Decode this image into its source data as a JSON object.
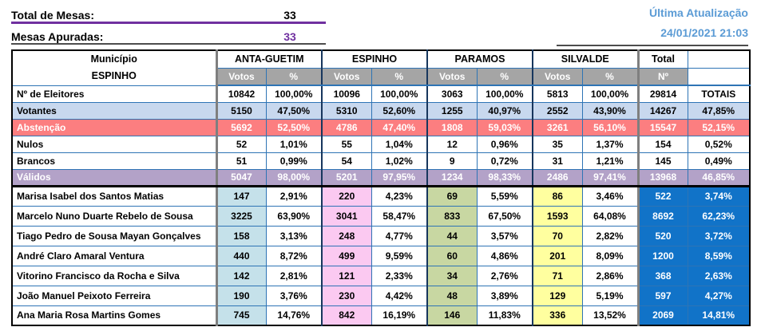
{
  "header": {
    "total_mesas_label": "Total de Mesas:",
    "total_mesas_value": "33",
    "mesas_apuradas_label": "Mesas Apuradas:",
    "mesas_apuradas_value": "33",
    "last_update_label": "Última Atualização",
    "last_update_value": "24/01/2021 21:03"
  },
  "table": {
    "municipio_label": "Município",
    "municipio_name": "ESPINHO",
    "groups": {
      "0": "ANTA-GUETIM",
      "1": "ESPINHO",
      "2": "PARAMOS",
      "3": "SILVALDE"
    },
    "votos_label": "Votos",
    "pct_label": "%",
    "total_label": "Total",
    "num_label": "Nº",
    "summary_rows": [
      {
        "label": "Nº de Eleitores",
        "style": "plain",
        "cells": [
          "10842",
          "100,00%",
          "10096",
          "100,00%",
          "3063",
          "100,00%",
          "5813",
          "100,00%"
        ],
        "total": "29814",
        "totais": "TOTAIS"
      },
      {
        "label": "Votantes",
        "style": "votantes",
        "cells": [
          "5150",
          "47,50%",
          "5310",
          "52,60%",
          "1255",
          "40,97%",
          "2552",
          "43,90%"
        ],
        "total": "14267",
        "totais": "47,85%"
      },
      {
        "label": "Abstenção",
        "style": "abstencao",
        "cells": [
          "5692",
          "52,50%",
          "4786",
          "47,40%",
          "1808",
          "59,03%",
          "3261",
          "56,10%"
        ],
        "total": "15547",
        "totais": "52,15%"
      },
      {
        "label": "Nulos",
        "style": "plain",
        "cells": [
          "52",
          "1,01%",
          "55",
          "1,04%",
          "12",
          "0,96%",
          "35",
          "1,37%"
        ],
        "total": "154",
        "totais": "0,52%"
      },
      {
        "label": "Brancos",
        "style": "plain",
        "cells": [
          "51",
          "0,99%",
          "54",
          "1,02%",
          "9",
          "0,72%",
          "31",
          "1,21%"
        ],
        "total": "145",
        "totais": "0,49%"
      },
      {
        "label": "Válidos",
        "style": "validos",
        "cells": [
          "5047",
          "98,00%",
          "5201",
          "97,95%",
          "1234",
          "98,33%",
          "2486",
          "97,41%"
        ],
        "total": "13968",
        "totais": "46,85%"
      }
    ],
    "candidate_rows": [
      {
        "label": "Marisa Isabel dos Santos Matias",
        "cells": [
          "147",
          "2,91%",
          "220",
          "4,23%",
          "69",
          "5,59%",
          "86",
          "3,46%"
        ],
        "total": "522",
        "totais": "3,74%"
      },
      {
        "label": "Marcelo Nuno Duarte Rebelo de Sousa",
        "cells": [
          "3225",
          "63,90%",
          "3041",
          "58,47%",
          "833",
          "67,50%",
          "1593",
          "64,08%"
        ],
        "total": "8692",
        "totais": "62,23%"
      },
      {
        "label": "Tiago Pedro de Sousa Mayan Gonçalves",
        "cells": [
          "158",
          "3,13%",
          "248",
          "4,77%",
          "44",
          "3,57%",
          "70",
          "2,82%"
        ],
        "total": "520",
        "totais": "3,72%"
      },
      {
        "label": "André Claro Amaral Ventura",
        "cells": [
          "440",
          "8,72%",
          "499",
          "9,59%",
          "60",
          "4,86%",
          "201",
          "8,09%"
        ],
        "total": "1200",
        "totais": "8,59%"
      },
      {
        "label": "Vitorino Francisco da Rocha e Silva",
        "cells": [
          "142",
          "2,81%",
          "121",
          "2,33%",
          "34",
          "2,76%",
          "71",
          "2,86%"
        ],
        "total": "368",
        "totais": "2,63%"
      },
      {
        "label": "João Manuel Peixoto Ferreira",
        "cells": [
          "190",
          "3,76%",
          "230",
          "4,42%",
          "48",
          "3,89%",
          "129",
          "5,19%"
        ],
        "total": "597",
        "totais": "4,27%"
      },
      {
        "label": "Ana Maria Rosa Martins Gomes",
        "cells": [
          "745",
          "14,76%",
          "842",
          "16,19%",
          "146",
          "11,83%",
          "336",
          "13,52%"
        ],
        "total": "2069",
        "totais": "14,81%"
      }
    ]
  },
  "colors": {
    "accent_purple": "#7030A0",
    "header_blue_text": "#5B9BD5",
    "grid_blue": "#2E74B5",
    "gray_header_bg": "#A5A5A5",
    "votantes_bg": "#C8D8EE",
    "abstencao_bg": "#FC7E80",
    "validos_bg": "#B3A2C8",
    "anta_guetim_bg": "#C5E1EA",
    "espinho_bg": "#FBC9F1",
    "paramos_bg": "#C8D7A2",
    "silvalde_bg": "#FFFF9F",
    "total_column_bg": "#1173C8"
  }
}
